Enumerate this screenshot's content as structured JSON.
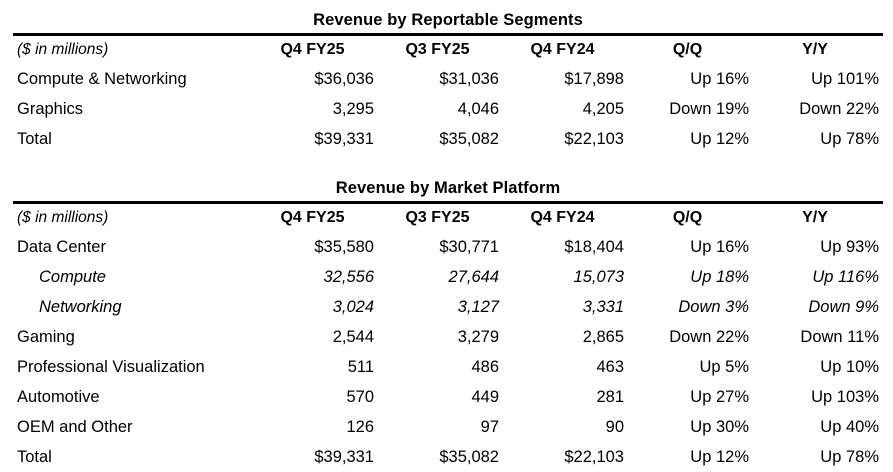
{
  "page": {
    "background": "#ffffff",
    "text_color": "#000000",
    "rule_color": "#000000"
  },
  "tables": [
    {
      "title": "Revenue by Reportable Segments",
      "unit_label": "($ in millions)",
      "columns": [
        "Q4 FY25",
        "Q3 FY25",
        "Q4 FY24",
        "Q/Q",
        "Y/Y"
      ],
      "rows": [
        {
          "label": "Compute & Networking",
          "style": "normal",
          "values": [
            "$36,036",
            "$31,036",
            "$17,898",
            "Up 16%",
            "Up 101%"
          ]
        },
        {
          "label": "Graphics",
          "style": "normal",
          "values": [
            "3,295",
            "4,046",
            "4,205",
            "Down 19%",
            "Down 22%"
          ]
        },
        {
          "label": "Total",
          "style": "normal",
          "values": [
            "$39,331",
            "$35,082",
            "$22,103",
            "Up 12%",
            "Up 78%"
          ]
        }
      ]
    },
    {
      "title": "Revenue by Market Platform",
      "unit_label": "($ in millions)",
      "columns": [
        "Q4 FY25",
        "Q3 FY25",
        "Q4 FY24",
        "Q/Q",
        "Y/Y"
      ],
      "rows": [
        {
          "label": "Data Center",
          "style": "normal",
          "values": [
            "$35,580",
            "$30,771",
            "$18,404",
            "Up 16%",
            "Up 93%"
          ]
        },
        {
          "label": "Compute",
          "style": "sub",
          "values": [
            "32,556",
            "27,644",
            "15,073",
            "Up 18%",
            "Up 116%"
          ]
        },
        {
          "label": "Networking",
          "style": "sub",
          "values": [
            "3,024",
            "3,127",
            "3,331",
            "Down 3%",
            "Down 9%"
          ]
        },
        {
          "label": "Gaming",
          "style": "normal",
          "values": [
            "2,544",
            "3,279",
            "2,865",
            "Down 22%",
            "Down 11%"
          ]
        },
        {
          "label": "Professional Visualization",
          "style": "normal",
          "values": [
            "511",
            "486",
            "463",
            "Up 5%",
            "Up 10%"
          ]
        },
        {
          "label": "Automotive",
          "style": "normal",
          "values": [
            "570",
            "449",
            "281",
            "Up 27%",
            "Up 103%"
          ]
        },
        {
          "label": "OEM and Other",
          "style": "normal",
          "values": [
            "126",
            "97",
            "90",
            "Up 30%",
            "Up 40%"
          ]
        },
        {
          "label": "Total",
          "style": "normal",
          "values": [
            "$39,331",
            "$35,082",
            "$22,103",
            "Up 12%",
            "Up 78%"
          ]
        }
      ]
    }
  ]
}
